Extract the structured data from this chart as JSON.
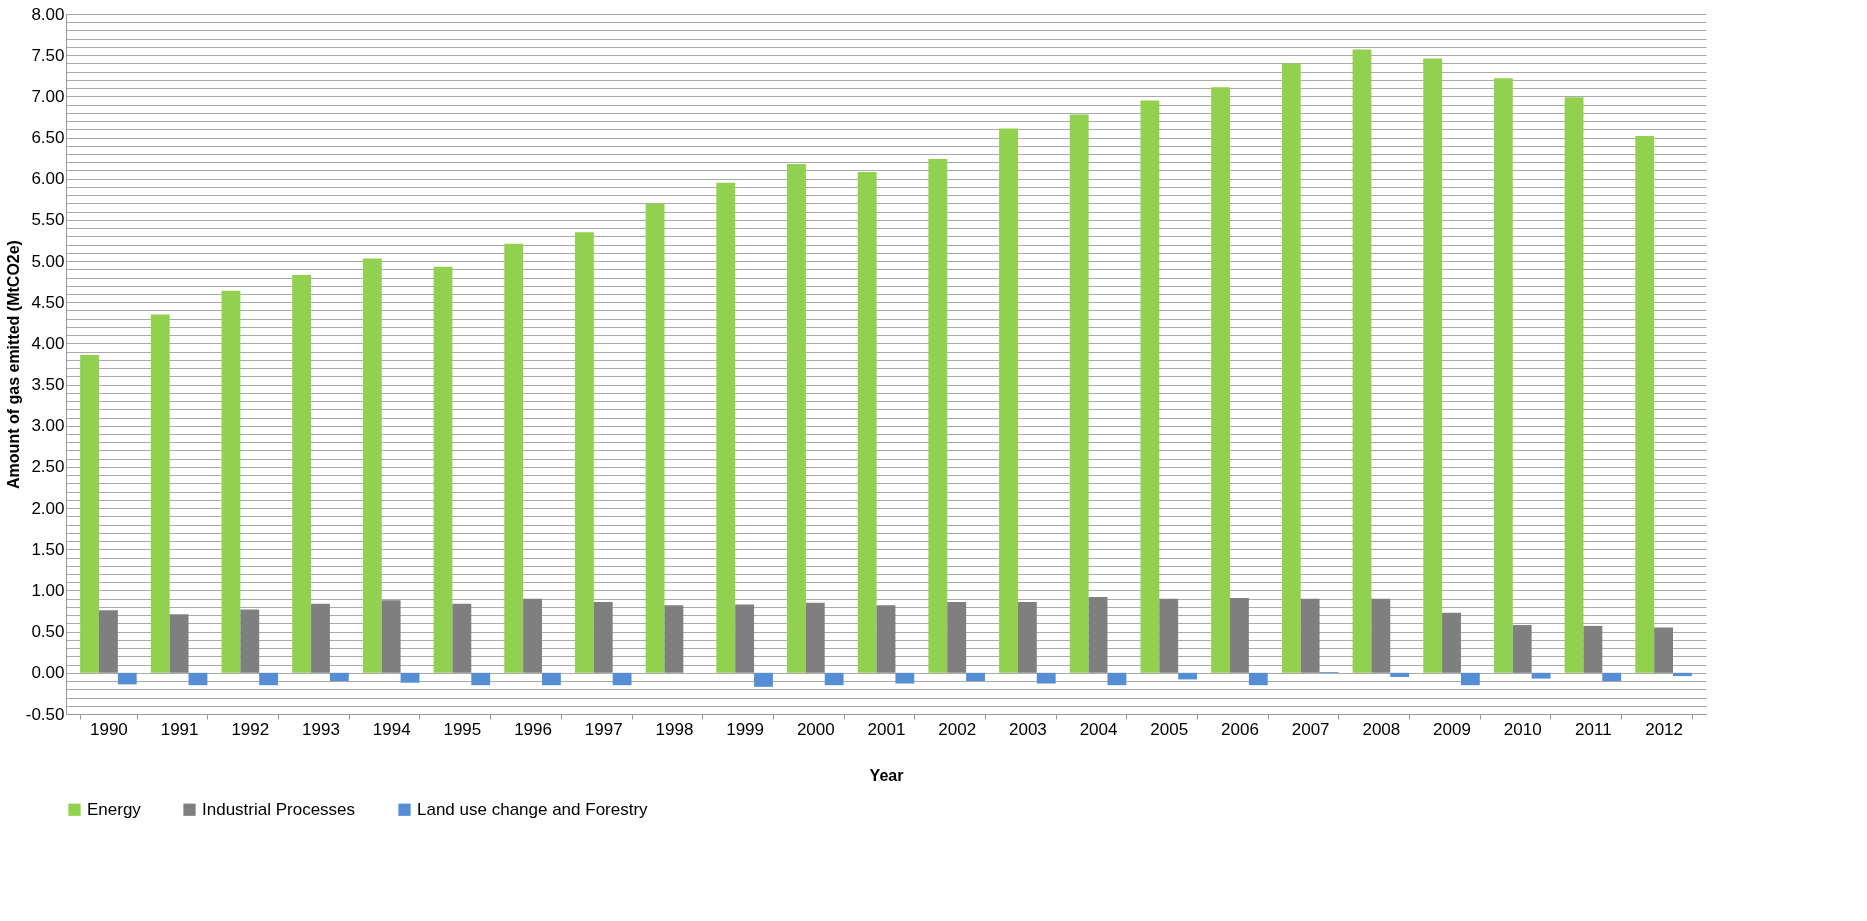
{
  "chart_data": {
    "type": "bar",
    "xlabel": "Year",
    "ylabel": "Amount of gas emitted (MtCO2e)",
    "categories": [
      "1990",
      "1991",
      "1992",
      "1993",
      "1994",
      "1995",
      "1996",
      "1997",
      "1998",
      "1999",
      "2000",
      "2001",
      "2002",
      "2003",
      "2004",
      "2005",
      "2006",
      "2007",
      "2008",
      "2009",
      "2010",
      "2011",
      "2012"
    ],
    "series": [
      {
        "name": "Energy",
        "color": "#92d050",
        "values": [
          3.86,
          4.35,
          4.64,
          4.83,
          5.03,
          4.93,
          5.21,
          5.35,
          5.7,
          5.95,
          6.18,
          6.08,
          6.24,
          6.61,
          6.78,
          6.95,
          7.11,
          7.4,
          7.57,
          7.46,
          7.22,
          6.99,
          6.52
        ]
      },
      {
        "name": "Industrial Processes",
        "color": "#7f7f7f",
        "values": [
          0.76,
          0.71,
          0.77,
          0.84,
          0.88,
          0.84,
          0.9,
          0.86,
          0.82,
          0.83,
          0.85,
          0.82,
          0.86,
          0.86,
          0.92,
          0.9,
          0.91,
          0.9,
          0.9,
          0.73,
          0.58,
          0.57,
          0.55
        ]
      },
      {
        "name": "Land use change and Forestry",
        "color": "#558ed5",
        "values": [
          -0.14,
          -0.15,
          -0.15,
          -0.1,
          -0.12,
          -0.15,
          -0.15,
          -0.15,
          0.0,
          -0.17,
          -0.15,
          -0.13,
          -0.1,
          -0.13,
          -0.15,
          -0.08,
          -0.15,
          0.01,
          -0.05,
          -0.15,
          -0.07,
          -0.1,
          -0.04
        ]
      }
    ],
    "ylim": [
      -0.5,
      8.0
    ],
    "yticks": [
      {
        "value": -0.5,
        "label": "-0.50"
      },
      {
        "value": -0.4,
        "label": null
      },
      {
        "value": -0.3,
        "label": null
      },
      {
        "value": -0.2,
        "label": null
      },
      {
        "value": -0.1,
        "label": null
      },
      {
        "value": 0,
        "label": "0.00"
      },
      {
        "value": 0.1,
        "label": null
      },
      {
        "value": 0.2,
        "label": null
      },
      {
        "value": 0.3,
        "label": null
      },
      {
        "value": 0.4,
        "label": null
      },
      {
        "value": 0.5,
        "label": "0.50"
      },
      {
        "value": 0.6,
        "label": null
      },
      {
        "value": 0.7,
        "label": null
      },
      {
        "value": 0.8,
        "label": null
      },
      {
        "value": 0.9,
        "label": null
      },
      {
        "value": 1.0,
        "label": "1.00"
      },
      {
        "value": 1.1,
        "label": null
      },
      {
        "value": 1.2,
        "label": null
      },
      {
        "value": 1.3,
        "label": null
      },
      {
        "value": 1.4,
        "label": null
      },
      {
        "value": 1.5,
        "label": "1.50"
      },
      {
        "value": 1.6,
        "label": null
      },
      {
        "value": 1.7,
        "label": null
      },
      {
        "value": 1.8,
        "label": null
      },
      {
        "value": 1.9,
        "label": null
      },
      {
        "value": 2.0,
        "label": "2.00"
      },
      {
        "value": 2.1,
        "label": null
      },
      {
        "value": 2.2,
        "label": null
      },
      {
        "value": 2.3,
        "label": null
      },
      {
        "value": 2.4,
        "label": null
      },
      {
        "value": 2.5,
        "label": "2.50"
      },
      {
        "value": 2.6,
        "label": null
      },
      {
        "value": 2.7,
        "label": null
      },
      {
        "value": 2.8,
        "label": null
      },
      {
        "value": 2.9,
        "label": null
      },
      {
        "value": 3.0,
        "label": "3.00"
      },
      {
        "value": 3.1,
        "label": null
      },
      {
        "value": 3.2,
        "label": null
      },
      {
        "value": 3.3,
        "label": null
      },
      {
        "value": 3.4,
        "label": null
      },
      {
        "value": 3.5,
        "label": "3.50"
      },
      {
        "value": 3.6,
        "label": null
      },
      {
        "value": 3.7,
        "label": null
      },
      {
        "value": 3.8,
        "label": null
      },
      {
        "value": 3.9,
        "label": null
      },
      {
        "value": 4.0,
        "label": "4.00"
      },
      {
        "value": 4.1,
        "label": null
      },
      {
        "value": 4.2,
        "label": null
      },
      {
        "value": 4.3,
        "label": null
      },
      {
        "value": 4.4,
        "label": null
      },
      {
        "value": 4.5,
        "label": "4.50"
      },
      {
        "value": 4.6,
        "label": null
      },
      {
        "value": 4.7,
        "label": null
      },
      {
        "value": 4.8,
        "label": null
      },
      {
        "value": 4.9,
        "label": null
      },
      {
        "value": 5.0,
        "label": "5.00"
      },
      {
        "value": 5.1,
        "label": null
      },
      {
        "value": 5.2,
        "label": null
      },
      {
        "value": 5.3,
        "label": null
      },
      {
        "value": 5.4,
        "label": null
      },
      {
        "value": 5.5,
        "label": "5.50"
      },
      {
        "value": 5.6,
        "label": null
      },
      {
        "value": 5.7,
        "label": null
      },
      {
        "value": 5.8,
        "label": null
      },
      {
        "value": 5.9,
        "label": null
      },
      {
        "value": 6.0,
        "label": "6.00"
      },
      {
        "value": 6.1,
        "label": null
      },
      {
        "value": 6.2,
        "label": null
      },
      {
        "value": 6.3,
        "label": null
      },
      {
        "value": 6.4,
        "label": null
      },
      {
        "value": 6.5,
        "label": "6.50"
      },
      {
        "value": 6.6,
        "label": null
      },
      {
        "value": 6.7,
        "label": null
      },
      {
        "value": 6.8,
        "label": null
      },
      {
        "value": 6.9,
        "label": null
      },
      {
        "value": 7.0,
        "label": "7.00"
      },
      {
        "value": 7.1,
        "label": null
      },
      {
        "value": 7.2,
        "label": null
      },
      {
        "value": 7.3,
        "label": null
      },
      {
        "value": 7.4,
        "label": null
      },
      {
        "value": 7.5,
        "label": "7.50"
      },
      {
        "value": 7.6,
        "label": null
      },
      {
        "value": 7.7,
        "label": null
      },
      {
        "value": 7.8,
        "label": null
      },
      {
        "value": 7.9,
        "label": null
      },
      {
        "value": 8.0,
        "label": "8.00"
      }
    ],
    "grid": "y",
    "legend": "bottom"
  }
}
